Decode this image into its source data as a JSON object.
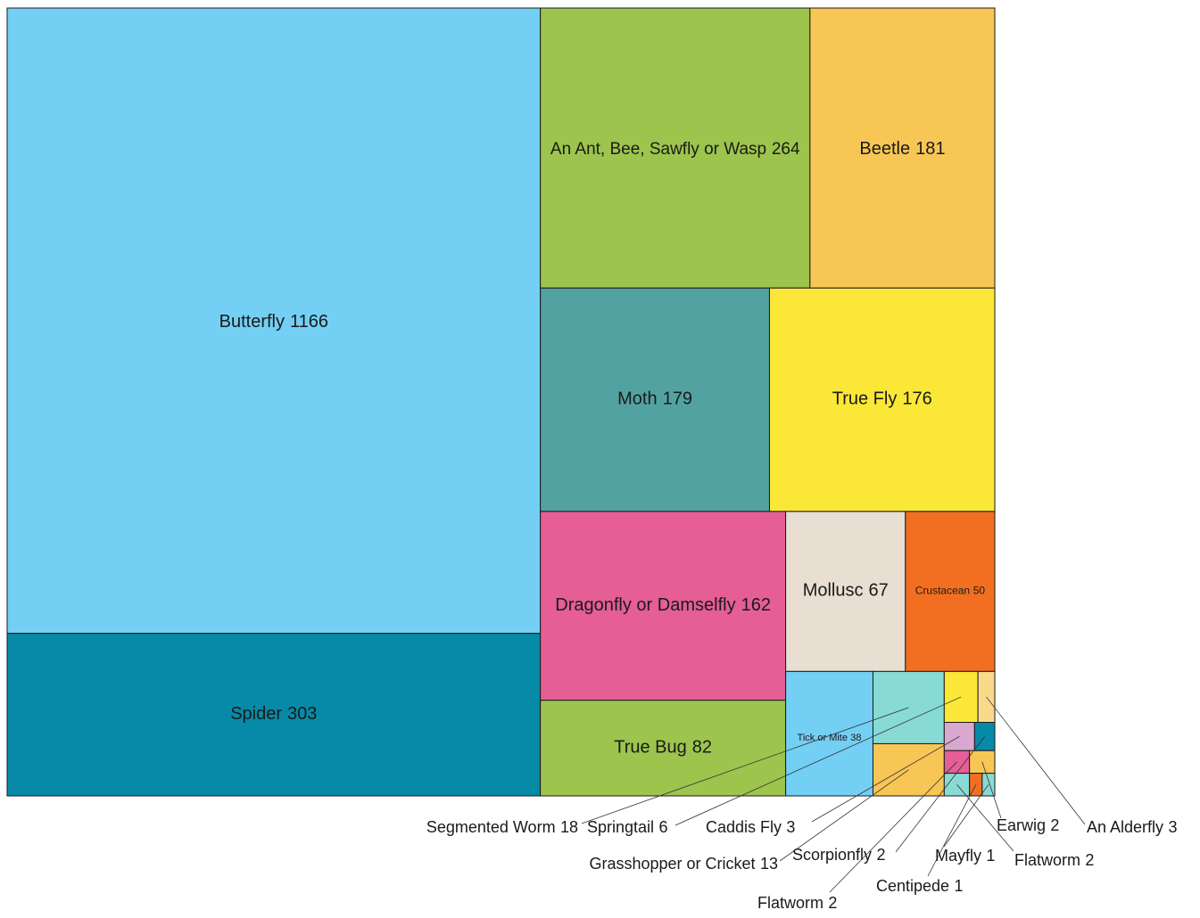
{
  "chart_data": {
    "type": "treemap",
    "categories": [
      "Butterfly",
      "Spider",
      "An Ant, Bee, Sawfly or Wasp",
      "Beetle",
      "Moth",
      "True Fly",
      "Dragonfly or Damselfly",
      "True Bug",
      "Mollusc",
      "Crustacean",
      "Tick or Mite",
      "Segmented Worm",
      "Grasshopper or Cricket",
      "Springtail",
      "An Alderfly",
      "Caddis Fly",
      "Scorpionfly",
      "Flatworm",
      "Earwig",
      "Flatworm",
      "Centipede",
      "Mayfly"
    ],
    "values": [
      1166,
      303,
      264,
      181,
      179,
      176,
      162,
      82,
      67,
      50,
      38,
      18,
      13,
      6,
      3,
      3,
      2,
      2,
      2,
      2,
      1,
      1
    ],
    "colors": [
      "#74cff4",
      "#078aa8",
      "#9dc44d",
      "#f8c655",
      "#53a2a2",
      "#fbe737",
      "#e55e96",
      "#9dc44d",
      "#e8dfd2",
      "#f26f22",
      "#74cff4",
      "#87dbd4",
      "#f8c655",
      "#fbe737",
      "#f9d98a",
      "#d9a8d0",
      "#078aa8",
      "#e55e96",
      "#f8c655",
      "#87dbd4",
      "#f26f22",
      "#87dbd4"
    ]
  }
}
